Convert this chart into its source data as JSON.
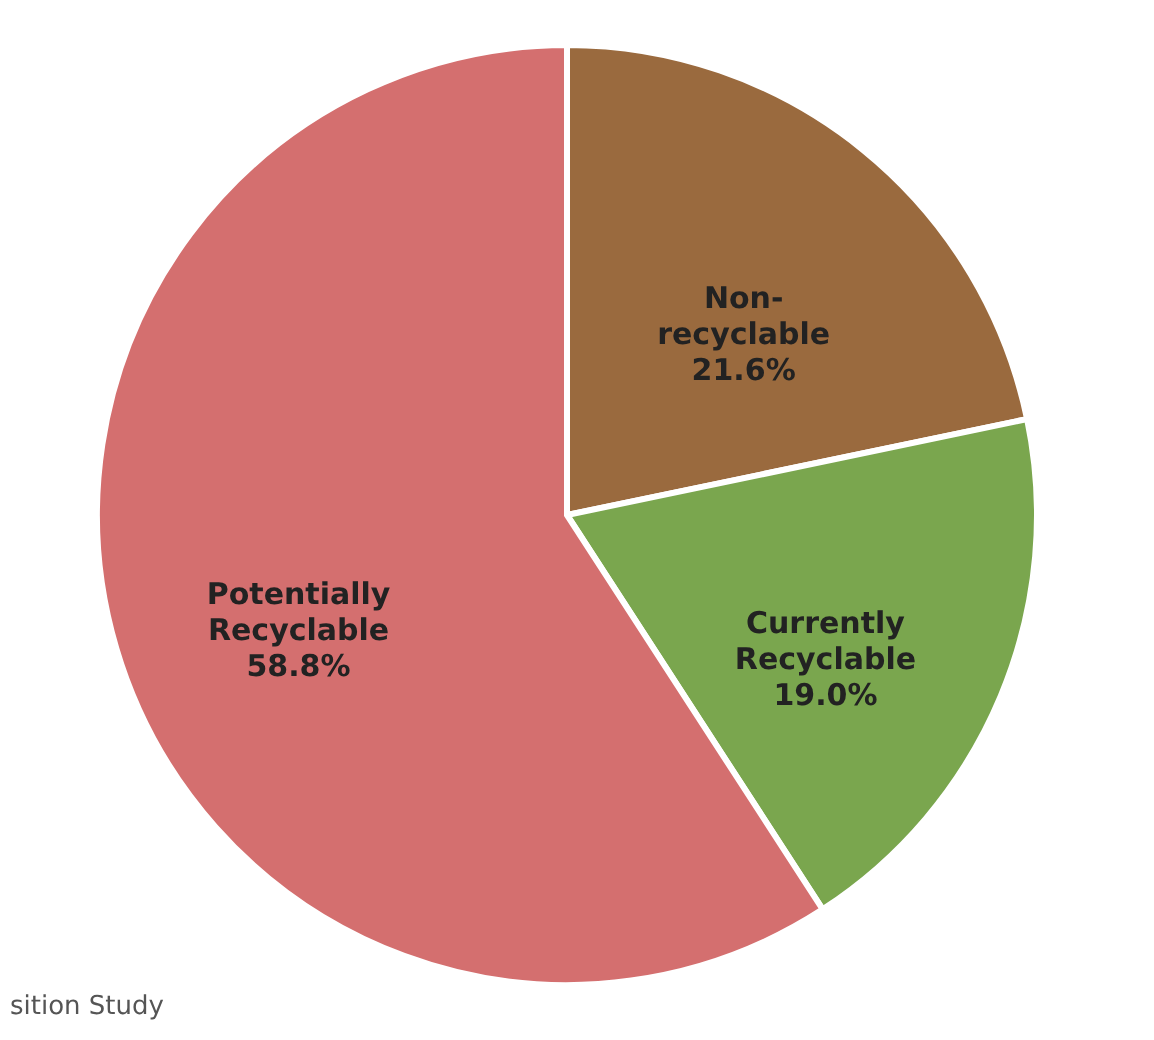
{
  "chart_data": {
    "type": "pie",
    "categories": [
      "Non-recyclable",
      "Currently Recyclable",
      "Potentially Recyclable"
    ],
    "values": [
      21.6,
      19.0,
      58.8
    ],
    "value_labels": [
      "21.6%",
      "19.0%",
      "58.8%"
    ],
    "colors": [
      "#9a6a3e",
      "#7aa64e",
      "#d46f6f"
    ],
    "legend": false,
    "annotations": [
      "sition Study"
    ]
  }
}
